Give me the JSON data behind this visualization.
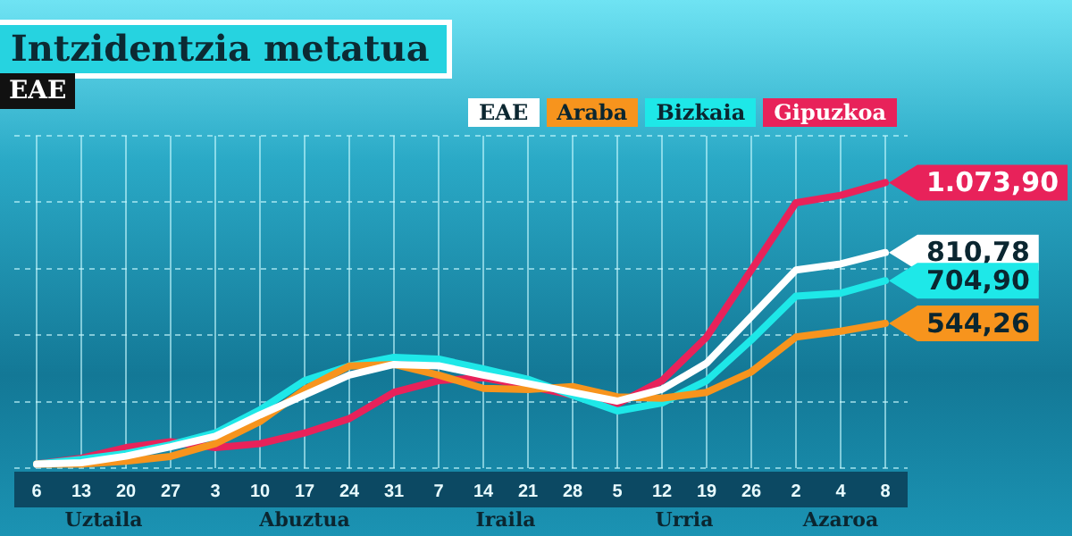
{
  "chart_data": {
    "type": "line",
    "title": "Intzidentzia metatua",
    "subtitle": "EAE",
    "categories": [
      "6",
      "13",
      "20",
      "27",
      "3",
      "10",
      "17",
      "24",
      "31",
      "7",
      "14",
      "21",
      "28",
      "5",
      "12",
      "19",
      "26",
      "2",
      "4",
      "8"
    ],
    "annotations": [
      "Uztaila",
      "Abuztua",
      "Iraila",
      "Urria",
      "Azaroa"
    ],
    "series": [
      {
        "name": "EAE",
        "color": "#ffffff",
        "values": [
          15,
          20,
          45,
          80,
          120,
          200,
          275,
          350,
          390,
          385,
          350,
          318,
          285,
          252,
          296,
          395,
          570,
          745,
          768,
          810.78
        ],
        "value_labels": [
          null,
          null,
          null,
          null,
          null,
          null,
          null,
          null,
          null,
          null,
          null,
          null,
          null,
          null,
          null,
          null,
          null,
          null,
          null,
          "810,78"
        ]
      },
      {
        "name": "Araba",
        "color": "#f7941d",
        "values": [
          15,
          15,
          26,
          44,
          92,
          175,
          296,
          384,
          390,
          350,
          300,
          296,
          307,
          268,
          263,
          285,
          362,
          493,
          515,
          544.26
        ],
        "value_labels": [
          null,
          null,
          null,
          null,
          null,
          null,
          null,
          null,
          null,
          null,
          null,
          null,
          null,
          null,
          null,
          null,
          null,
          null,
          null,
          "544,26"
        ]
      },
      {
        "name": "Bizkaia",
        "color": "#1ee8e8",
        "values": [
          15,
          33,
          55,
          88,
          132,
          219,
          329,
          384,
          417,
          410,
          373,
          334,
          274,
          215,
          245,
          329,
          482,
          647,
          658,
          704.9
        ],
        "value_labels": [
          null,
          null,
          null,
          null,
          null,
          null,
          null,
          null,
          null,
          null,
          null,
          null,
          null,
          null,
          null,
          null,
          null,
          null,
          null,
          "704,90"
        ]
      },
      {
        "name": "Gipuzkoa",
        "color": "#e8225a",
        "values": [
          15,
          37,
          77,
          99,
          77,
          92,
          132,
          186,
          285,
          329,
          340,
          309,
          274,
          241,
          329,
          493,
          745,
          998,
          1026,
          1073.9
        ],
        "value_labels": [
          null,
          null,
          null,
          null,
          null,
          null,
          null,
          null,
          null,
          null,
          null,
          null,
          null,
          null,
          null,
          null,
          null,
          null,
          null,
          "1.073,90"
        ]
      }
    ],
    "ylim": [
      0,
      1250
    ],
    "yticks": [
      {
        "value": 0,
        "label": null
      },
      {
        "value": 250,
        "label": null
      },
      {
        "value": 500,
        "label": null
      },
      {
        "value": 750,
        "label": null
      },
      {
        "value": 1000,
        "label": null
      },
      {
        "value": 1250,
        "label": null
      }
    ],
    "tick_labels": "x",
    "grid": true,
    "legend": "top",
    "marker": "none",
    "line_style": "solid"
  }
}
